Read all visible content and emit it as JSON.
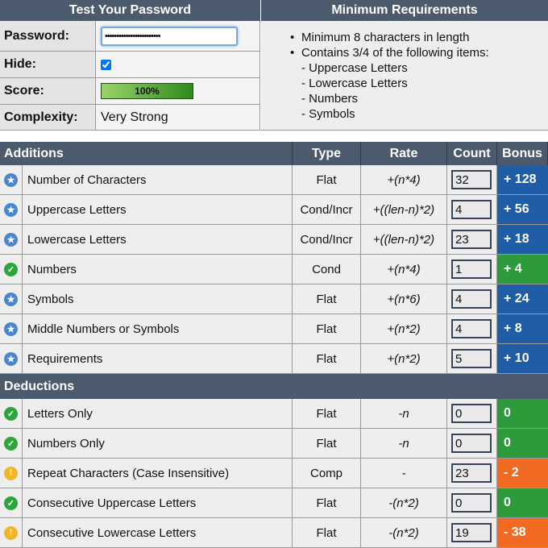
{
  "test": {
    "title": "Test Your Password",
    "password": {
      "label": "Password:",
      "value": "••••••••••••••••••••••••"
    },
    "hide": {
      "label": "Hide:",
      "checked": true
    },
    "score": {
      "label": "Score:",
      "value": "100%"
    },
    "complexity": {
      "label": "Complexity:",
      "value": "Very Strong"
    }
  },
  "requirements": {
    "title": "Minimum Requirements",
    "items": [
      {
        "text": "Minimum 8 characters in length"
      },
      {
        "text": "Contains 3/4 of the following items:",
        "sub": [
          "- Uppercase Letters",
          "- Lowercase Letters",
          "- Numbers",
          "- Symbols"
        ]
      }
    ]
  },
  "table": {
    "headers": [
      "Additions",
      "Type",
      "Rate",
      "Count",
      "Bonus"
    ],
    "additions": [
      {
        "status": "exceeds",
        "name": "Number of Characters",
        "type": "Flat",
        "rate": "+(n*4)",
        "count": 32,
        "bonus": "+ 128"
      },
      {
        "status": "exceeds",
        "name": "Uppercase Letters",
        "type": "Cond/Incr",
        "rate": "+((len-n)*2)",
        "count": 4,
        "bonus": "+ 56"
      },
      {
        "status": "exceeds",
        "name": "Lowercase Letters",
        "type": "Cond/Incr",
        "rate": "+((len-n)*2)",
        "count": 23,
        "bonus": "+ 18"
      },
      {
        "status": "sufficient",
        "name": "Numbers",
        "type": "Cond",
        "rate": "+(n*4)",
        "count": 1,
        "bonus": "+ 4"
      },
      {
        "status": "exceeds",
        "name": "Symbols",
        "type": "Flat",
        "rate": "+(n*6)",
        "count": 4,
        "bonus": "+ 24"
      },
      {
        "status": "exceeds",
        "name": "Middle Numbers or Symbols",
        "type": "Flat",
        "rate": "+(n*2)",
        "count": 4,
        "bonus": "+ 8"
      },
      {
        "status": "exceeds",
        "name": "Requirements",
        "type": "Flat",
        "rate": "+(n*2)",
        "count": 5,
        "bonus": "+ 10"
      }
    ],
    "deductions_title": "Deductions",
    "deductions": [
      {
        "status": "sufficient",
        "name": "Letters Only",
        "type": "Flat",
        "rate": "-n",
        "count": 0,
        "bonus": "0"
      },
      {
        "status": "sufficient",
        "name": "Numbers Only",
        "type": "Flat",
        "rate": "-n",
        "count": 0,
        "bonus": "0"
      },
      {
        "status": "warning",
        "name": "Repeat Characters (Case Insensitive)",
        "type": "Comp",
        "rate": "-",
        "count": 23,
        "bonus": "- 2"
      },
      {
        "status": "sufficient",
        "name": "Consecutive Uppercase Letters",
        "type": "Flat",
        "rate": "-(n*2)",
        "count": 0,
        "bonus": "0"
      },
      {
        "status": "warning",
        "name": "Consecutive Lowercase Letters",
        "type": "Flat",
        "rate": "-(n*2)",
        "count": 19,
        "bonus": "- 38"
      }
    ]
  }
}
